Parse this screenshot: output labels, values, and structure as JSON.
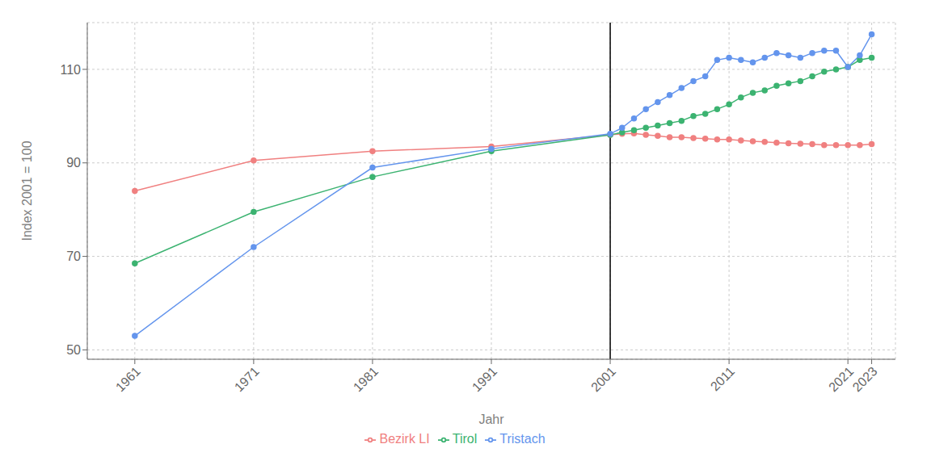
{
  "chart_data": {
    "type": "line",
    "xlabel": "Jahr",
    "ylabel": "Index 2001 = 100",
    "x": [
      1961,
      1971,
      1981,
      1991,
      2001,
      2002,
      2003,
      2004,
      2005,
      2006,
      2007,
      2008,
      2009,
      2010,
      2011,
      2012,
      2013,
      2014,
      2015,
      2016,
      2017,
      2018,
      2019,
      2020,
      2021,
      2022,
      2023
    ],
    "series": [
      {
        "name": "Bezirk LI",
        "color": "#F08080",
        "marker": "circle",
        "values": [
          84.0,
          90.5,
          92.5,
          93.5,
          96.0,
          96.2,
          96.3,
          96.0,
          95.8,
          95.5,
          95.5,
          95.3,
          95.2,
          95.0,
          95.0,
          94.8,
          94.6,
          94.5,
          94.3,
          94.2,
          94.1,
          94.0,
          93.8,
          93.8,
          93.8,
          93.8,
          94.0
        ]
      },
      {
        "name": "Tirol",
        "color": "#3CB371",
        "marker": "circle",
        "values": [
          68.5,
          79.5,
          87.0,
          92.5,
          96.0,
          96.5,
          97.0,
          97.5,
          98.0,
          98.5,
          99.0,
          100.0,
          100.5,
          101.5,
          102.5,
          104.0,
          105.0,
          105.5,
          106.5,
          107.0,
          107.5,
          108.5,
          109.5,
          110.0,
          110.5,
          112.0,
          112.5
        ]
      },
      {
        "name": "Tristach",
        "color": "#6495ED",
        "marker": "circle",
        "values": [
          53.0,
          72.0,
          89.0,
          93.0,
          96.2,
          97.5,
          99.5,
          101.5,
          103.0,
          104.5,
          106.0,
          107.5,
          108.5,
          112.0,
          112.5,
          112.0,
          111.5,
          112.5,
          113.5,
          113.0,
          112.5,
          113.5,
          114.0,
          114.0,
          110.5,
          113.0,
          117.5
        ]
      }
    ],
    "xlim": [
      1957,
      2025
    ],
    "ylim": [
      48,
      120
    ],
    "xticks": [
      1961,
      1971,
      1981,
      1991,
      2001,
      2011,
      2021,
      2023
    ],
    "yticks": [
      50,
      70,
      90,
      110
    ],
    "grid": true,
    "legend": "bottom",
    "vlines": [
      2001
    ]
  }
}
